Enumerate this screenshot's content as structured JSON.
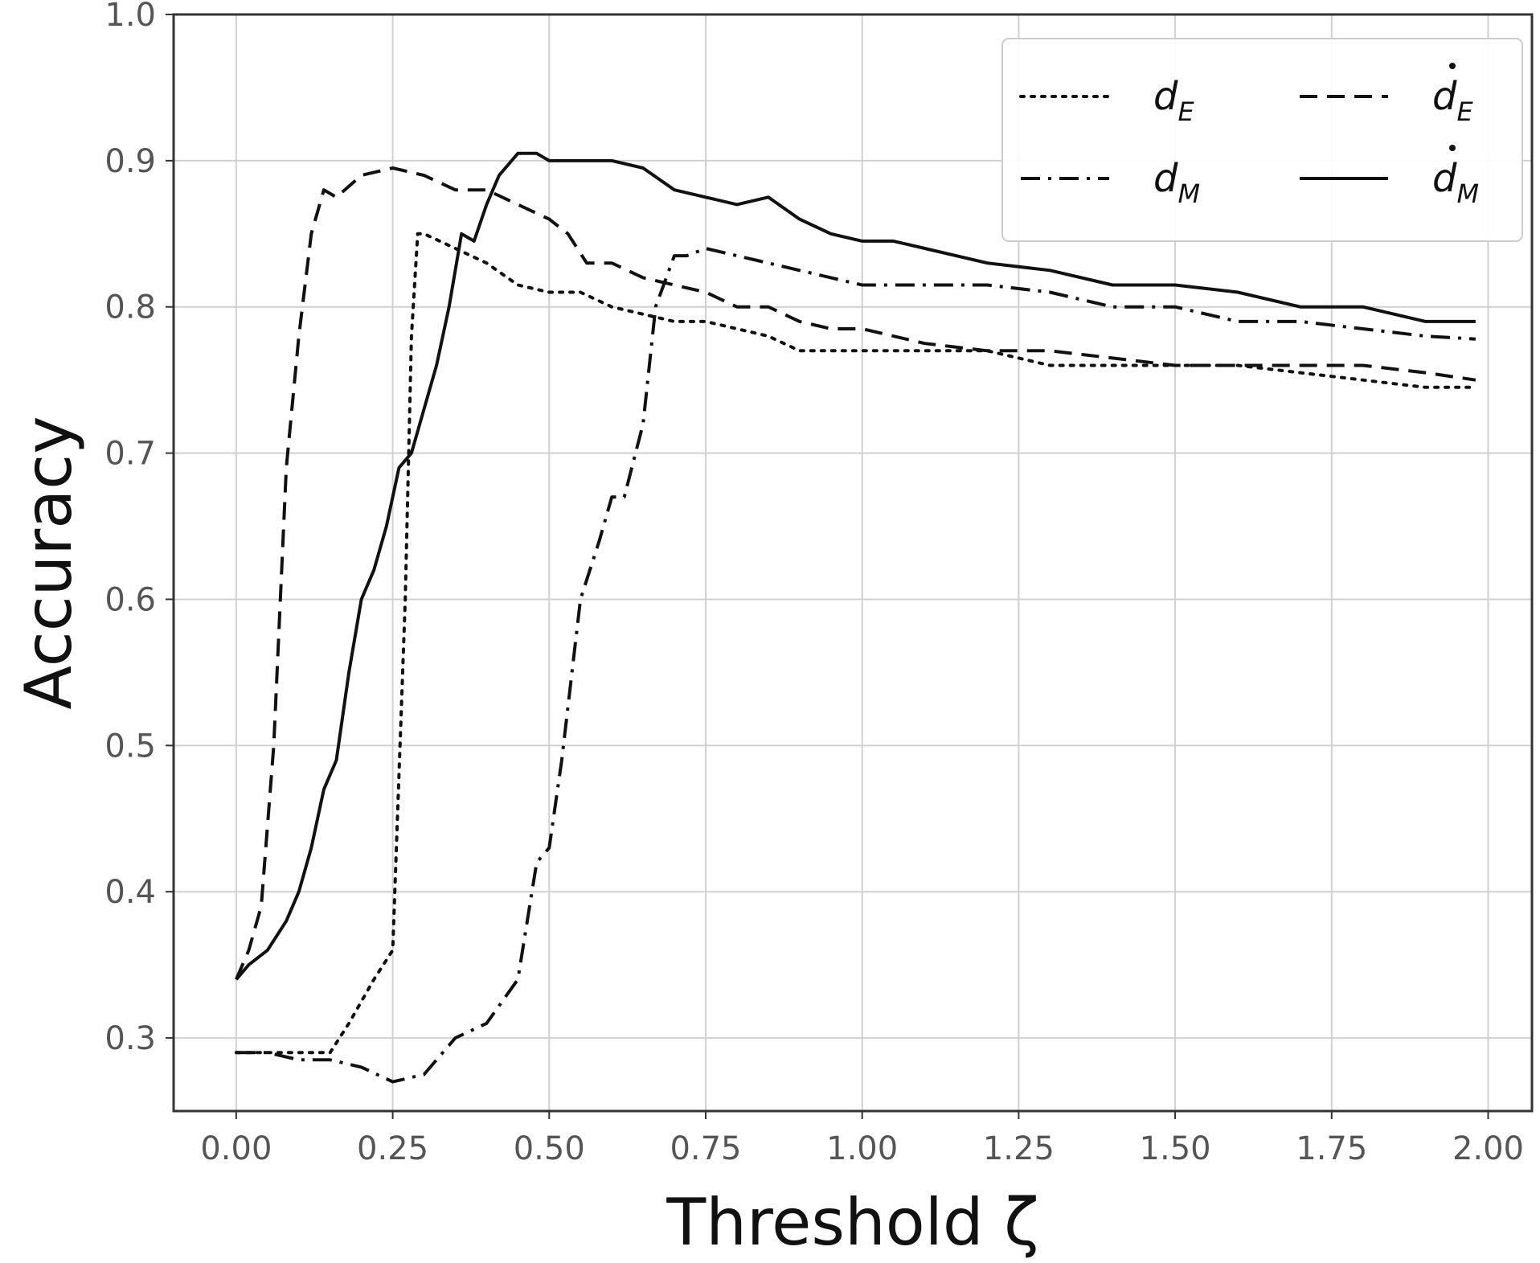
{
  "chart_data": {
    "type": "line",
    "xlabel": "Threshold ζ",
    "ylabel": "Accuracy",
    "xlim": [
      -0.1,
      2.07
    ],
    "ylim": [
      0.25,
      1.0
    ],
    "xticks": [
      "0.00",
      "0.25",
      "0.50",
      "0.75",
      "1.00",
      "1.25",
      "1.50",
      "1.75",
      "2.00"
    ],
    "yticks": [
      "0.3",
      "0.4",
      "0.5",
      "0.6",
      "0.7",
      "0.8",
      "0.9",
      "1.0"
    ],
    "grid": true,
    "legend_position": "top-right",
    "legend_columns": 2,
    "series": [
      {
        "name": "d_E",
        "label_main": "d",
        "label_sub": "E",
        "dot": false,
        "style": "dotted",
        "x": [
          0.0,
          0.05,
          0.1,
          0.15,
          0.18,
          0.22,
          0.25,
          0.27,
          0.28,
          0.29,
          0.3,
          0.35,
          0.4,
          0.45,
          0.5,
          0.55,
          0.6,
          0.65,
          0.7,
          0.75,
          0.8,
          0.85,
          0.9,
          1.0,
          1.1,
          1.2,
          1.3,
          1.4,
          1.5,
          1.6,
          1.7,
          1.8,
          1.9,
          1.98
        ],
        "y": [
          0.29,
          0.29,
          0.29,
          0.29,
          0.31,
          0.34,
          0.36,
          0.6,
          0.78,
          0.85,
          0.85,
          0.84,
          0.83,
          0.815,
          0.81,
          0.81,
          0.8,
          0.795,
          0.79,
          0.79,
          0.785,
          0.78,
          0.77,
          0.77,
          0.77,
          0.77,
          0.76,
          0.76,
          0.76,
          0.76,
          0.755,
          0.75,
          0.745,
          0.745
        ]
      },
      {
        "name": "d_M",
        "label_main": "d",
        "label_sub": "M",
        "dot": false,
        "style": "dashdot",
        "x": [
          0.0,
          0.05,
          0.1,
          0.15,
          0.2,
          0.25,
          0.3,
          0.35,
          0.4,
          0.45,
          0.48,
          0.5,
          0.52,
          0.55,
          0.58,
          0.6,
          0.62,
          0.65,
          0.67,
          0.7,
          0.72,
          0.75,
          0.8,
          0.85,
          0.9,
          0.95,
          1.0,
          1.1,
          1.2,
          1.3,
          1.4,
          1.5,
          1.6,
          1.7,
          1.8,
          1.9,
          1.98
        ],
        "y": [
          0.29,
          0.29,
          0.285,
          0.285,
          0.28,
          0.27,
          0.275,
          0.3,
          0.31,
          0.34,
          0.42,
          0.43,
          0.49,
          0.6,
          0.64,
          0.67,
          0.67,
          0.72,
          0.8,
          0.835,
          0.835,
          0.84,
          0.835,
          0.83,
          0.825,
          0.82,
          0.815,
          0.815,
          0.815,
          0.81,
          0.8,
          0.8,
          0.79,
          0.79,
          0.785,
          0.78,
          0.778
        ]
      },
      {
        "name": "ḋ_E",
        "label_main": "d",
        "label_sub": "E",
        "dot": true,
        "style": "dashed",
        "x": [
          0.0,
          0.02,
          0.04,
          0.06,
          0.08,
          0.1,
          0.12,
          0.14,
          0.16,
          0.2,
          0.25,
          0.3,
          0.35,
          0.4,
          0.45,
          0.5,
          0.53,
          0.56,
          0.6,
          0.65,
          0.7,
          0.75,
          0.8,
          0.85,
          0.9,
          0.95,
          1.0,
          1.1,
          1.2,
          1.3,
          1.4,
          1.5,
          1.6,
          1.7,
          1.8,
          1.9,
          1.98
        ],
        "y": [
          0.34,
          0.36,
          0.39,
          0.5,
          0.69,
          0.78,
          0.85,
          0.88,
          0.875,
          0.89,
          0.895,
          0.89,
          0.88,
          0.88,
          0.87,
          0.86,
          0.85,
          0.83,
          0.83,
          0.82,
          0.815,
          0.81,
          0.8,
          0.8,
          0.79,
          0.785,
          0.785,
          0.775,
          0.77,
          0.77,
          0.765,
          0.76,
          0.76,
          0.76,
          0.76,
          0.755,
          0.75
        ]
      },
      {
        "name": "ḋ_M",
        "label_main": "d",
        "label_sub": "M",
        "dot": true,
        "style": "solid",
        "x": [
          0.0,
          0.02,
          0.05,
          0.08,
          0.1,
          0.12,
          0.14,
          0.16,
          0.18,
          0.2,
          0.22,
          0.24,
          0.26,
          0.28,
          0.3,
          0.32,
          0.34,
          0.36,
          0.38,
          0.4,
          0.42,
          0.45,
          0.48,
          0.5,
          0.55,
          0.6,
          0.65,
          0.7,
          0.75,
          0.8,
          0.85,
          0.9,
          0.95,
          1.0,
          1.05,
          1.1,
          1.2,
          1.3,
          1.4,
          1.5,
          1.6,
          1.7,
          1.8,
          1.9,
          1.98
        ],
        "y": [
          0.34,
          0.35,
          0.36,
          0.38,
          0.4,
          0.43,
          0.47,
          0.49,
          0.55,
          0.6,
          0.62,
          0.65,
          0.69,
          0.7,
          0.73,
          0.76,
          0.8,
          0.85,
          0.845,
          0.87,
          0.89,
          0.905,
          0.905,
          0.9,
          0.9,
          0.9,
          0.895,
          0.88,
          0.875,
          0.87,
          0.875,
          0.86,
          0.85,
          0.845,
          0.845,
          0.84,
          0.83,
          0.825,
          0.815,
          0.815,
          0.81,
          0.8,
          0.8,
          0.79,
          0.79
        ]
      }
    ]
  }
}
